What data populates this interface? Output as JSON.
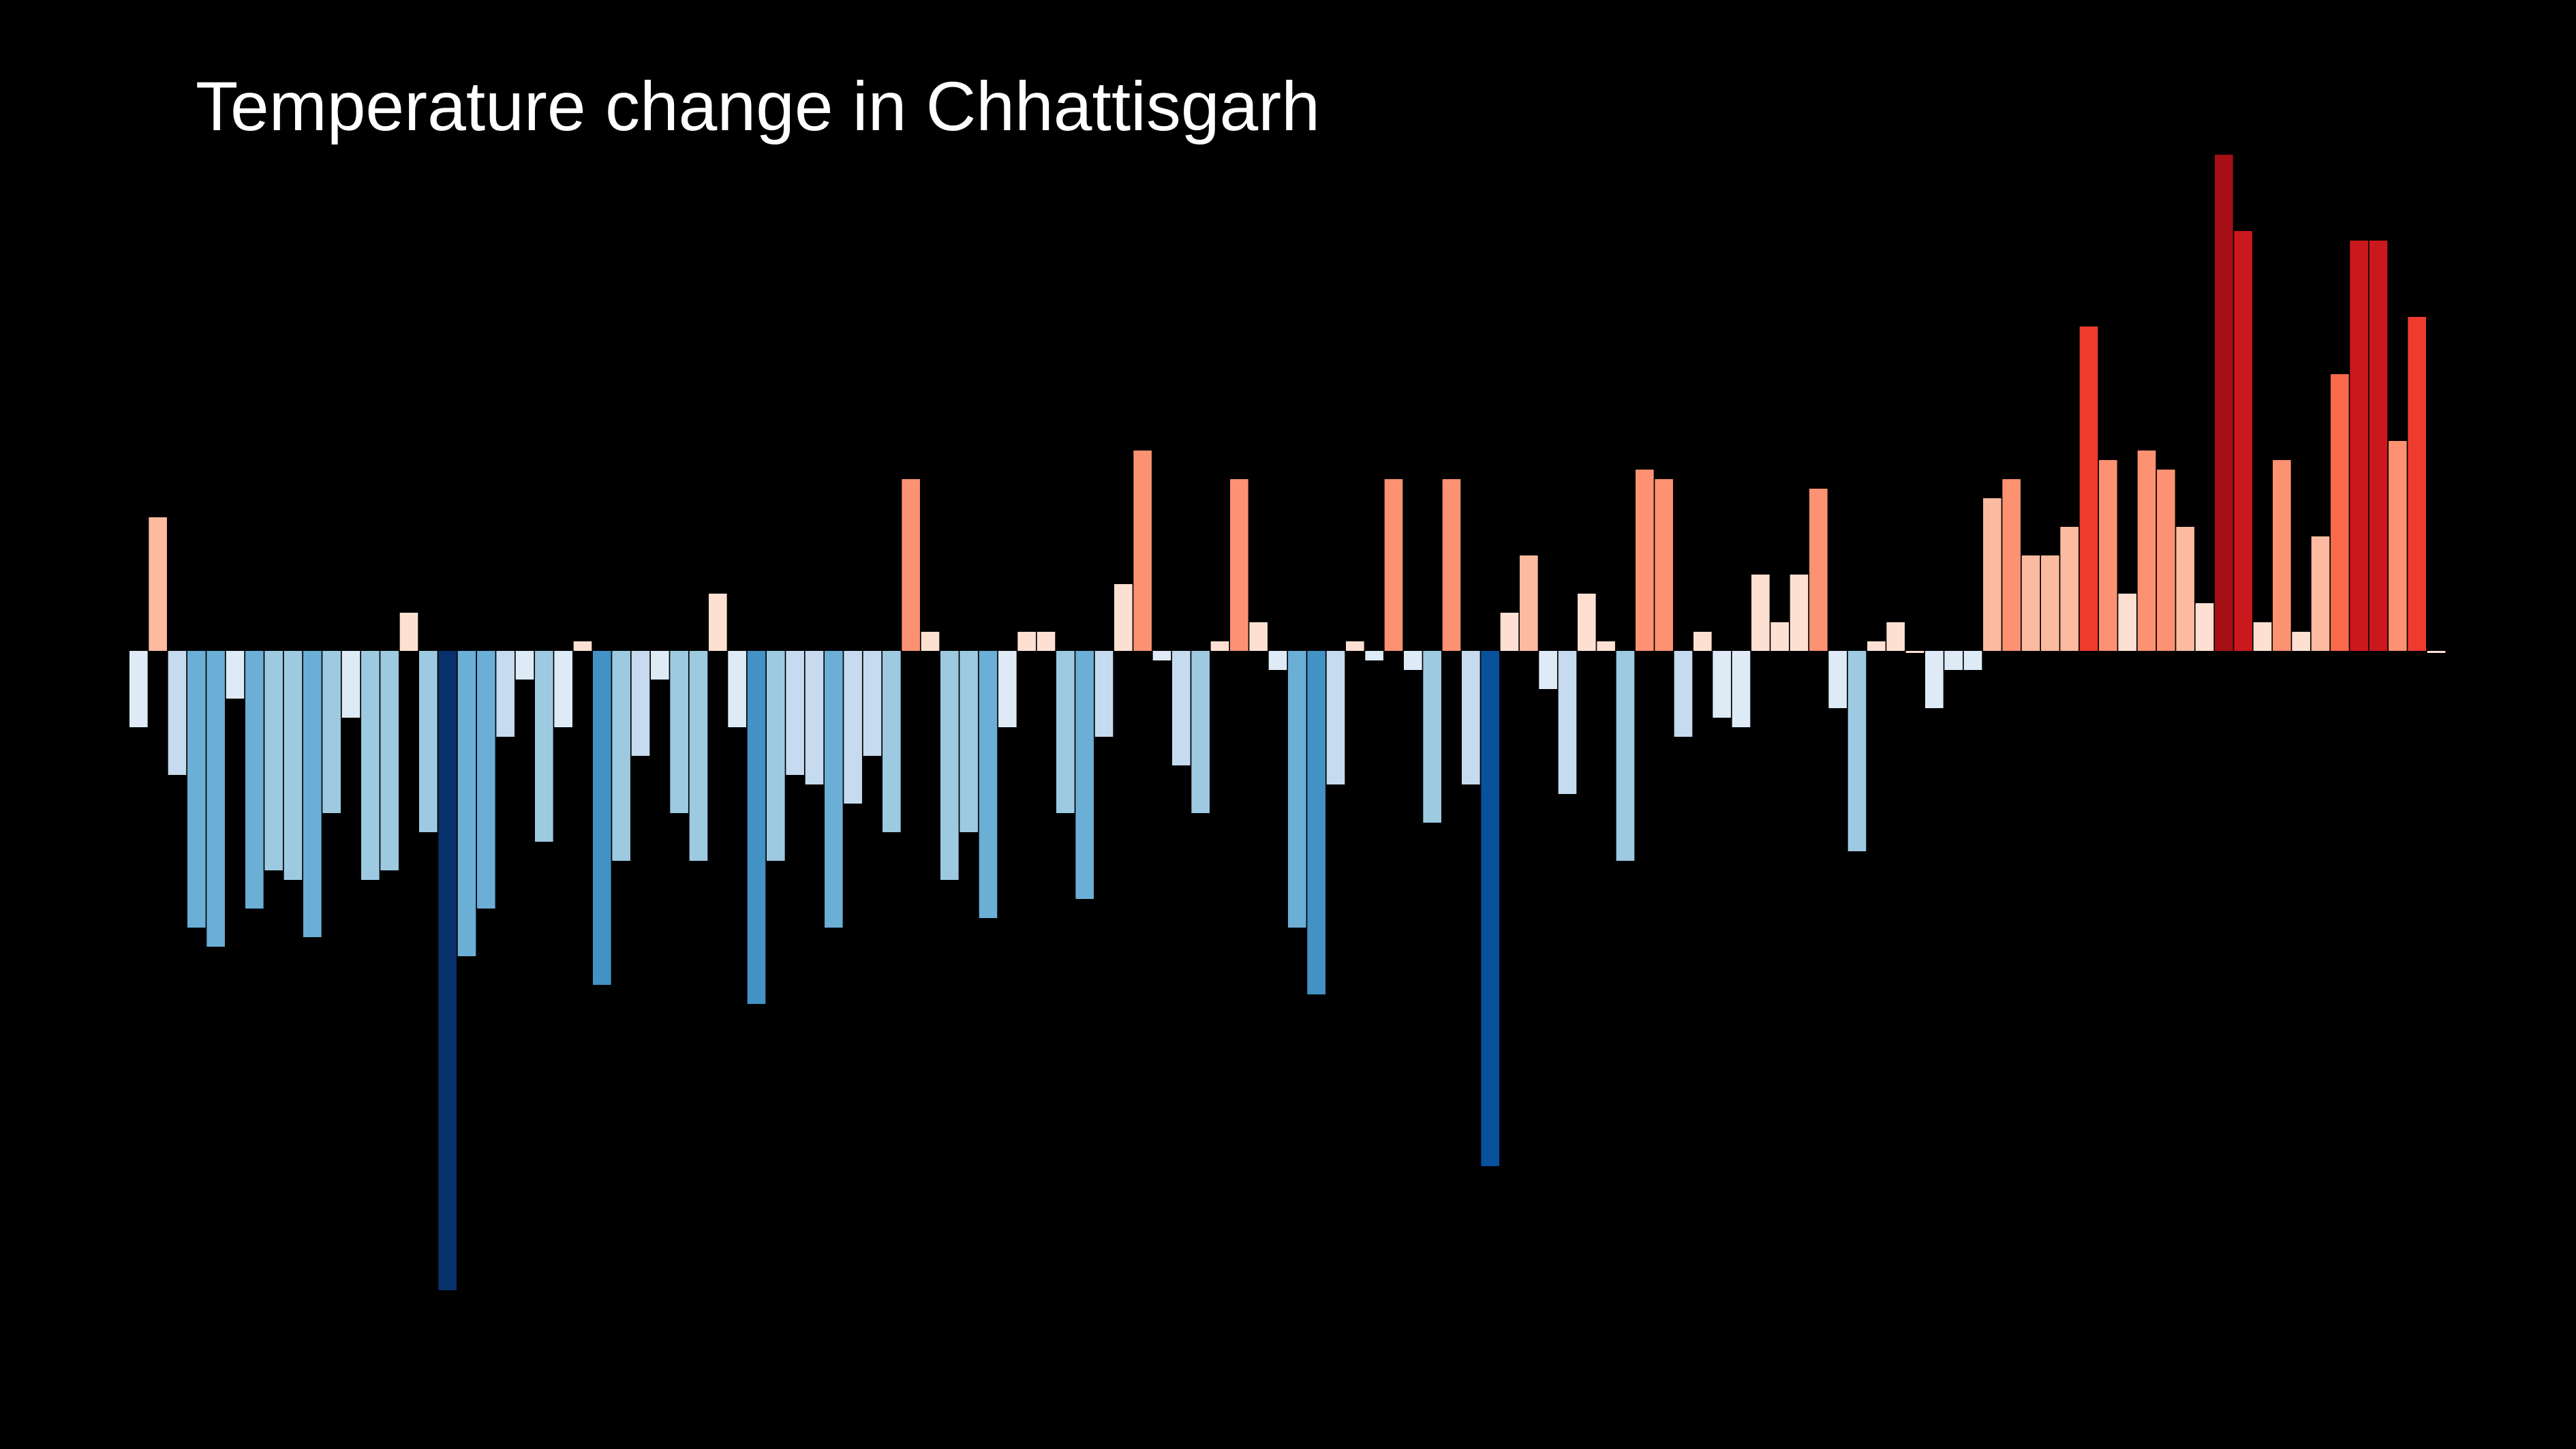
{
  "chart_data": {
    "type": "bar",
    "title": "Temperature change in Chhattisgarh",
    "xlabel": "",
    "ylabel": "",
    "grid": false,
    "legend": "none",
    "ylim": [
      -0.66,
      0.66
    ],
    "color_scale": [
      "#08306b",
      "#08519c",
      "#2171b5",
      "#4292c6",
      "#6baed6",
      "#9ecae1",
      "#c6dbef",
      "#deebf7",
      "#fee0d2",
      "#fcbba1",
      "#fc9272",
      "#fb6a4a",
      "#ef3b2c",
      "#cb181d",
      "#a50f15",
      "#67000d"
    ],
    "values": [
      -0.08,
      0.14,
      -0.13,
      -0.29,
      -0.31,
      -0.05,
      -0.27,
      -0.23,
      -0.24,
      -0.3,
      -0.17,
      -0.07,
      -0.24,
      -0.23,
      0.04,
      -0.19,
      -0.67,
      -0.32,
      -0.27,
      -0.09,
      -0.03,
      -0.2,
      -0.08,
      0.01,
      -0.35,
      -0.22,
      -0.11,
      -0.03,
      -0.17,
      -0.22,
      0.06,
      -0.08,
      -0.37,
      -0.22,
      -0.13,
      -0.14,
      -0.29,
      -0.16,
      -0.11,
      -0.19,
      0.18,
      0.02,
      -0.24,
      -0.19,
      -0.28,
      -0.08,
      0.02,
      0.02,
      -0.17,
      -0.26,
      -0.09,
      0.07,
      0.21,
      -0.01,
      -0.12,
      -0.17,
      0.01,
      0.18,
      0.03,
      -0.02,
      -0.29,
      -0.36,
      -0.14,
      0.01,
      -0.01,
      0.18,
      -0.02,
      -0.18,
      0.18,
      -0.14,
      -0.54,
      0.04,
      0.1,
      -0.04,
      -0.15,
      0.06,
      0.01,
      -0.22,
      0.19,
      0.18,
      -0.09,
      0.02,
      -0.07,
      -0.08,
      0.08,
      0.03,
      0.08,
      0.17,
      -0.06,
      -0.21,
      0.01,
      0.03,
      0.0,
      -0.06,
      -0.02,
      -0.02,
      0.16,
      0.18,
      0.1,
      0.1,
      0.13,
      0.34,
      0.2,
      0.06,
      0.21,
      0.19,
      0.13,
      0.05,
      0.52,
      0.44,
      0.03,
      0.2,
      0.02,
      0.12,
      0.29,
      0.43,
      0.43,
      0.22,
      0.35,
      0.0
    ]
  }
}
